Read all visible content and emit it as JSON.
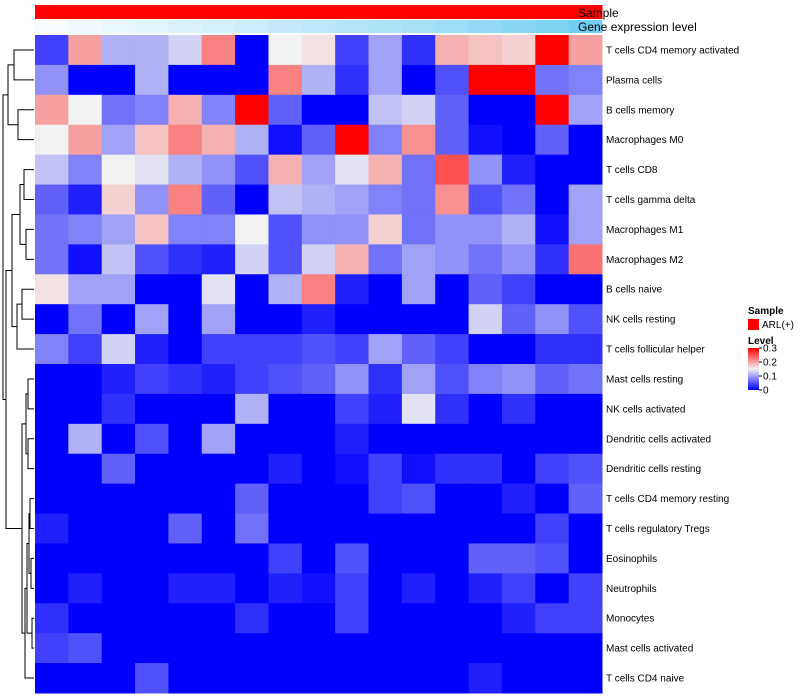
{
  "chart_data": {
    "type": "heatmap",
    "title": "",
    "annotations": {
      "sample_label": "Sample",
      "expression_label": "Gene expression level",
      "expression_values": [
        0.05,
        0.1,
        0.14,
        0.18,
        0.22,
        0.27,
        0.31,
        0.36,
        0.4,
        0.45,
        0.5,
        0.55,
        0.6,
        0.66,
        0.72,
        0.78,
        0.86
      ],
      "expression_colors": {
        "low": "#ffffff",
        "high": "#5bc6f0"
      }
    },
    "rows": [
      "T cells CD4 memory activated",
      "Plasma cells",
      "B cells memory",
      "Macrophages M0",
      "T cells CD8",
      "T cells gamma delta",
      "Macrophages M1",
      "Macrophages M2",
      "B cells naive",
      "NK cells resting",
      "T cells follicular helper",
      "Mast cells resting",
      "NK cells activated",
      "Dendritic cells activated",
      "Dendritic cells resting",
      "T cells CD4 memory resting",
      "T cells regulatory  Tregs",
      "Eosinophils",
      "Neutrophils",
      "Monocytes",
      "Mast cells activated",
      "T cells CD4 naive"
    ],
    "values": [
      [
        0.04,
        0.2,
        0.11,
        0.11,
        0.13,
        0.22,
        0.0,
        0.15,
        0.16,
        0.04,
        0.1,
        0.03,
        0.19,
        0.18,
        0.17,
        0.3,
        0.2
      ],
      [
        0.09,
        0.0,
        0.0,
        0.11,
        0.0,
        0.0,
        0.0,
        0.22,
        0.11,
        0.03,
        0.1,
        0.0,
        0.05,
        0.3,
        0.3,
        0.07,
        0.08
      ],
      [
        0.2,
        0.15,
        0.07,
        0.08,
        0.19,
        0.08,
        0.3,
        0.06,
        0.0,
        0.0,
        0.12,
        0.13,
        0.06,
        0.0,
        0.0,
        0.3,
        0.1
      ],
      [
        0.15,
        0.2,
        0.1,
        0.18,
        0.22,
        0.19,
        0.11,
        0.01,
        0.06,
        0.3,
        0.08,
        0.21,
        0.06,
        0.01,
        0.0,
        0.06,
        0.0
      ],
      [
        0.12,
        0.08,
        0.15,
        0.14,
        0.11,
        0.09,
        0.05,
        0.19,
        0.1,
        0.14,
        0.19,
        0.07,
        0.25,
        0.09,
        0.02,
        0.0,
        0.0
      ],
      [
        0.06,
        0.02,
        0.17,
        0.09,
        0.22,
        0.06,
        0.0,
        0.12,
        0.11,
        0.1,
        0.08,
        0.07,
        0.21,
        0.05,
        0.07,
        0.0,
        0.1
      ],
      [
        0.07,
        0.08,
        0.1,
        0.18,
        0.08,
        0.08,
        0.15,
        0.05,
        0.09,
        0.09,
        0.17,
        0.07,
        0.09,
        0.09,
        0.11,
        0.01,
        0.1
      ],
      [
        0.07,
        0.01,
        0.12,
        0.05,
        0.03,
        0.02,
        0.13,
        0.05,
        0.13,
        0.19,
        0.07,
        0.1,
        0.09,
        0.07,
        0.09,
        0.03,
        0.23
      ],
      [
        0.16,
        0.1,
        0.1,
        0.0,
        0.0,
        0.14,
        0.0,
        0.11,
        0.22,
        0.02,
        0.0,
        0.1,
        0.0,
        0.06,
        0.04,
        0.0,
        0.0
      ],
      [
        0.0,
        0.07,
        0.0,
        0.1,
        0.0,
        0.1,
        0.0,
        0.0,
        0.02,
        0.0,
        0.0,
        0.0,
        0.0,
        0.13,
        0.06,
        0.09,
        0.05
      ],
      [
        0.08,
        0.04,
        0.13,
        0.02,
        0.0,
        0.04,
        0.04,
        0.04,
        0.05,
        0.04,
        0.1,
        0.06,
        0.04,
        0.0,
        0.0,
        0.03,
        0.03
      ],
      [
        0.0,
        0.0,
        0.02,
        0.04,
        0.03,
        0.02,
        0.04,
        0.05,
        0.06,
        0.09,
        0.03,
        0.1,
        0.05,
        0.08,
        0.09,
        0.06,
        0.07
      ],
      [
        0.0,
        0.0,
        0.03,
        0.0,
        0.0,
        0.0,
        0.11,
        0.0,
        0.0,
        0.04,
        0.02,
        0.14,
        0.03,
        0.0,
        0.03,
        0.0,
        0.0
      ],
      [
        0.0,
        0.11,
        0.0,
        0.05,
        0.0,
        0.1,
        0.0,
        0.0,
        0.0,
        0.02,
        0.0,
        0.0,
        0.0,
        0.0,
        0.0,
        0.0,
        0.0
      ],
      [
        0.0,
        0.0,
        0.06,
        0.0,
        0.0,
        0.0,
        0.0,
        0.02,
        0.0,
        0.01,
        0.04,
        0.01,
        0.03,
        0.03,
        0.0,
        0.04,
        0.05
      ],
      [
        0.0,
        0.0,
        0.0,
        0.0,
        0.0,
        0.0,
        0.06,
        0.0,
        0.0,
        0.0,
        0.04,
        0.05,
        0.0,
        0.0,
        0.02,
        0.0,
        0.06
      ],
      [
        0.02,
        0.0,
        0.0,
        0.0,
        0.06,
        0.0,
        0.07,
        0.0,
        0.0,
        0.0,
        0.0,
        0.0,
        0.0,
        0.0,
        0.0,
        0.04,
        0.0
      ],
      [
        0.0,
        0.0,
        0.0,
        0.0,
        0.0,
        0.0,
        0.0,
        0.04,
        0.0,
        0.05,
        0.0,
        0.0,
        0.0,
        0.06,
        0.06,
        0.05,
        0.0
      ],
      [
        0.0,
        0.02,
        0.0,
        0.0,
        0.02,
        0.02,
        0.0,
        0.02,
        0.01,
        0.04,
        0.0,
        0.02,
        0.0,
        0.02,
        0.04,
        0.0,
        0.04
      ],
      [
        0.03,
        0.0,
        0.0,
        0.0,
        0.0,
        0.0,
        0.03,
        0.0,
        0.0,
        0.04,
        0.0,
        0.0,
        0.0,
        0.0,
        0.02,
        0.04,
        0.04
      ],
      [
        0.04,
        0.05,
        0.0,
        0.0,
        0.0,
        0.0,
        0.0,
        0.0,
        0.0,
        0.0,
        0.0,
        0.0,
        0.0,
        0.0,
        0.0,
        0.0,
        0.0
      ],
      [
        0.0,
        0.0,
        0.0,
        0.05,
        0.0,
        0.0,
        0.0,
        0.0,
        0.0,
        0.0,
        0.0,
        0.0,
        0.0,
        0.02,
        0.0,
        0.0,
        0.0
      ]
    ],
    "color_scale": {
      "min": 0,
      "max": 0.3,
      "stops": [
        {
          "value": 0,
          "color": "#0000ff"
        },
        {
          "value": 0.15,
          "color": "#f2f2f2"
        },
        {
          "value": 0.3,
          "color": "#ff0000"
        }
      ]
    },
    "legend": {
      "sample_title": "Sample",
      "sample_entry": "ARL(+)",
      "sample_color": "#ff0000",
      "level_title": "Level",
      "level_ticks": [
        {
          "value": 0.3,
          "label": "0.3"
        },
        {
          "value": 0.2,
          "label": "0.2"
        },
        {
          "value": 0.1,
          "label": "0.1"
        },
        {
          "value": 0,
          "label": "0"
        }
      ],
      "placement": "right"
    },
    "dendrogram": "left"
  }
}
